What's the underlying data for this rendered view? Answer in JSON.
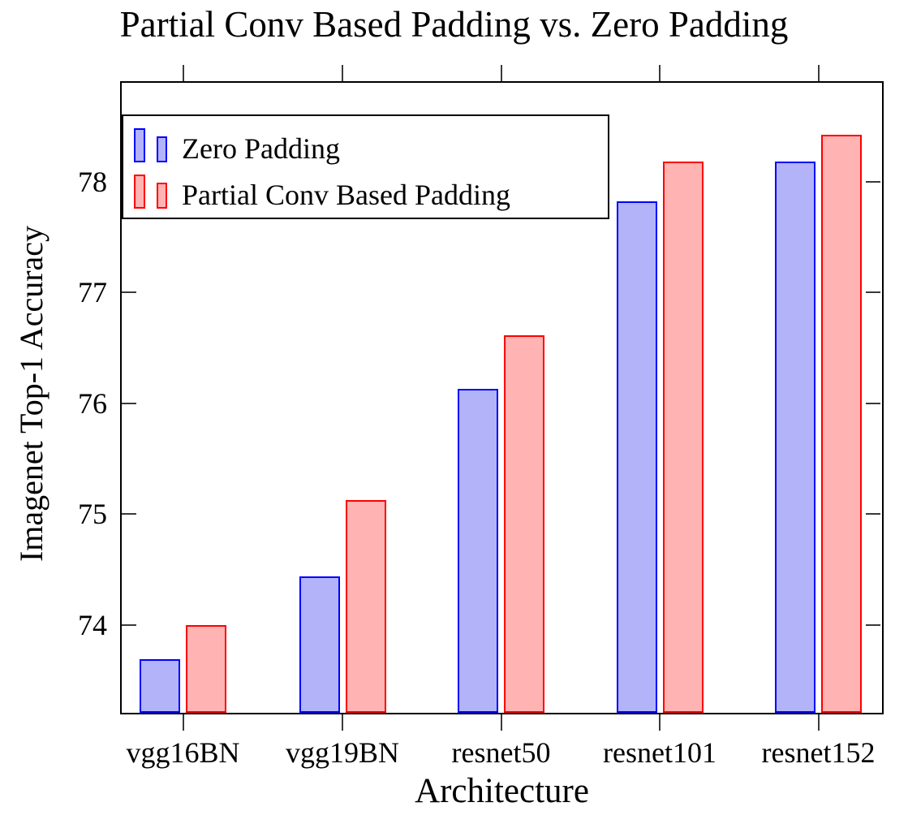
{
  "chart_data": {
    "type": "bar",
    "title": "Partial Conv Based Padding vs. Zero Padding",
    "xlabel": "Architecture",
    "ylabel": "Imagenet Top-1 Accuracy",
    "categories": [
      "vgg16BN",
      "vgg19BN",
      "resnet50",
      "resnet101",
      "resnet152"
    ],
    "series": [
      {
        "name": "Zero Padding",
        "values": [
          73.69,
          74.44,
          76.13,
          77.82,
          78.18
        ],
        "fill_color": "#b3b3fa",
        "border_color": "#0000ff"
      },
      {
        "name": "Partial Conv Based Padding",
        "values": [
          74.0,
          75.13,
          76.61,
          78.18,
          78.42
        ],
        "fill_color": "#ffb3b3",
        "border_color": "#ff0000"
      }
    ],
    "yticks": [
      74,
      75,
      76,
      77,
      78
    ],
    "ylim": [
      73.21,
      78.89
    ],
    "grid": "off",
    "legend_position": "north west",
    "legend": [
      "Zero Padding",
      "Partial Conv Based Padding"
    ],
    "axis_color": "#000000"
  }
}
